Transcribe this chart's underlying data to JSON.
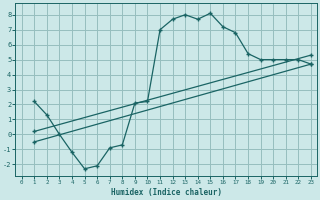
{
  "xlabel": "Humidex (Indice chaleur)",
  "background_color": "#cce8e8",
  "grid_color": "#96bebe",
  "line_color": "#1a6464",
  "xlim": [
    -0.5,
    23.5
  ],
  "ylim": [
    -2.8,
    8.8
  ],
  "xticks": [
    0,
    1,
    2,
    3,
    4,
    5,
    6,
    7,
    8,
    9,
    10,
    11,
    12,
    13,
    14,
    15,
    16,
    17,
    18,
    19,
    20,
    21,
    22,
    23
  ],
  "yticks": [
    -2,
    -1,
    0,
    1,
    2,
    3,
    4,
    5,
    6,
    7,
    8
  ],
  "line1_x": [
    1,
    2,
    3,
    4,
    5,
    6,
    7,
    8,
    9,
    10,
    11,
    12,
    13,
    14,
    15,
    16,
    17,
    18,
    19,
    20,
    21,
    22,
    23
  ],
  "line1_y": [
    2.2,
    1.3,
    0.0,
    -1.2,
    -2.3,
    -2.1,
    -0.9,
    -0.7,
    2.1,
    2.2,
    7.0,
    7.7,
    8.0,
    7.7,
    8.1,
    7.2,
    6.8,
    5.4,
    5.0,
    5.0,
    5.0,
    5.0,
    4.7
  ],
  "line2_x": [
    1,
    23
  ],
  "line2_y": [
    0.2,
    5.3
  ],
  "line3_x": [
    1,
    23
  ],
  "line3_y": [
    -0.5,
    4.7
  ]
}
